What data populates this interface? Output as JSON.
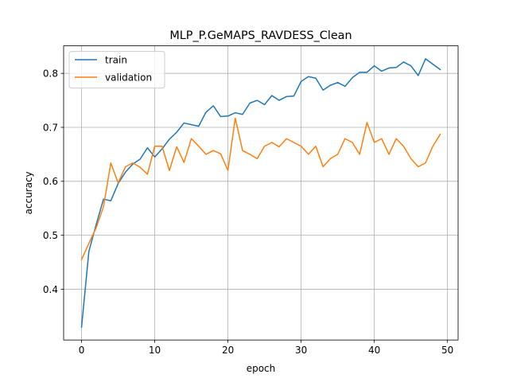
{
  "chart_data": {
    "type": "line",
    "title": "MLP_P.GeMAPS_RAVDESS_Clean",
    "xlabel": "epoch",
    "ylabel": "accuracy",
    "xlim": [
      -2.45,
      51.45
    ],
    "ylim": [
      0.306,
      0.851
    ],
    "xticks": [
      0,
      10,
      20,
      30,
      40,
      50
    ],
    "yticks": [
      0.4,
      0.5,
      0.6,
      0.7,
      0.8
    ],
    "xtick_labels": [
      "0",
      "10",
      "20",
      "30",
      "40",
      "50"
    ],
    "ytick_labels": [
      "0.4",
      "0.5",
      "0.6",
      "0.7",
      "0.8"
    ],
    "grid": true,
    "legend_position": "upper-left",
    "x": [
      0,
      1,
      2,
      3,
      4,
      5,
      6,
      7,
      8,
      9,
      10,
      11,
      12,
      13,
      14,
      15,
      16,
      17,
      18,
      19,
      20,
      21,
      22,
      23,
      24,
      25,
      26,
      27,
      28,
      29,
      30,
      31,
      32,
      33,
      34,
      35,
      36,
      37,
      38,
      39,
      40,
      41,
      42,
      43,
      44,
      45,
      46,
      47,
      48,
      49
    ],
    "series": [
      {
        "name": "train",
        "color": "#1f77b4",
        "values": [
          0.33,
          0.47,
          0.52,
          0.567,
          0.564,
          0.596,
          0.617,
          0.632,
          0.641,
          0.662,
          0.645,
          0.66,
          0.678,
          0.691,
          0.708,
          0.705,
          0.702,
          0.728,
          0.74,
          0.72,
          0.721,
          0.727,
          0.724,
          0.745,
          0.75,
          0.742,
          0.759,
          0.75,
          0.757,
          0.758,
          0.785,
          0.794,
          0.791,
          0.769,
          0.778,
          0.783,
          0.776,
          0.792,
          0.802,
          0.802,
          0.814,
          0.804,
          0.81,
          0.811,
          0.821,
          0.814,
          0.796,
          0.827,
          0.817,
          0.807
        ]
      },
      {
        "name": "validation",
        "color": "#ff7f0e",
        "values": [
          0.455,
          0.485,
          0.514,
          0.553,
          0.634,
          0.597,
          0.627,
          0.634,
          0.626,
          0.613,
          0.665,
          0.665,
          0.62,
          0.664,
          0.635,
          0.679,
          0.665,
          0.65,
          0.657,
          0.651,
          0.62,
          0.717,
          0.657,
          0.65,
          0.642,
          0.665,
          0.672,
          0.664,
          0.679,
          0.672,
          0.665,
          0.65,
          0.665,
          0.627,
          0.642,
          0.65,
          0.679,
          0.672,
          0.65,
          0.709,
          0.672,
          0.679,
          0.65,
          0.679,
          0.665,
          0.642,
          0.627,
          0.634,
          0.665,
          0.687
        ]
      }
    ]
  }
}
